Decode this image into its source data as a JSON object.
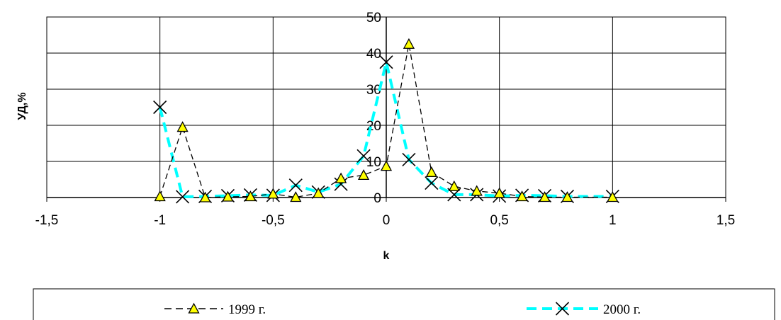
{
  "chart_data": {
    "type": "line",
    "xlabel": "k",
    "ylabel": "УД,%",
    "xlim": [
      -1.5,
      1.5
    ],
    "ylim": [
      0,
      50
    ],
    "x_ticks": [
      -1.5,
      -1,
      -0.5,
      0,
      0.5,
      1,
      1.5
    ],
    "x_tick_labels": [
      "-1,5",
      "-1",
      "-0,5",
      "0",
      "0,5",
      "1",
      "1,5"
    ],
    "y_ticks": [
      0,
      10,
      20,
      30,
      40,
      50
    ],
    "y_tick_labels": [
      "0",
      "10",
      "20",
      "30",
      "40",
      "50"
    ],
    "grid": true,
    "legend_position": "bottom",
    "series": [
      {
        "name": "1999 г.",
        "line_style": "dashed",
        "color": "#000000",
        "marker": "triangle",
        "marker_color": "#ffff00",
        "x": [
          -1,
          -0.9,
          -0.8,
          -0.7,
          -0.6,
          -0.5,
          -0.4,
          -0.3,
          -0.2,
          -0.1,
          0,
          0.1,
          0.2,
          0.3,
          0.4,
          0.5,
          0.6,
          0.7,
          0.8,
          1
        ],
        "y": [
          0.3,
          19.5,
          0,
          0.2,
          0.3,
          1,
          0.1,
          1.2,
          5.3,
          6.2,
          8.7,
          42.5,
          7,
          3.1,
          1.8,
          1.2,
          0.3,
          0.1,
          0.1,
          0.1
        ]
      },
      {
        "name": "2000 г.",
        "line_style": "dashed",
        "color": "#00ffff",
        "marker": "x",
        "marker_color": "#000000",
        "x": [
          -1,
          -0.9,
          -0.8,
          -0.7,
          -0.6,
          -0.5,
          -0.4,
          -0.3,
          -0.2,
          -0.1,
          0,
          0.1,
          0.2,
          0.3,
          0.4,
          0.5,
          0.6,
          0.7,
          0.8,
          1
        ],
        "y": [
          25,
          0.2,
          0.3,
          0.5,
          0.7,
          0.6,
          3.4,
          1.5,
          3.7,
          11.5,
          37.5,
          10.5,
          4,
          0.8,
          0.8,
          0.4,
          0.6,
          0.5,
          0.3,
          0.3
        ]
      }
    ]
  }
}
